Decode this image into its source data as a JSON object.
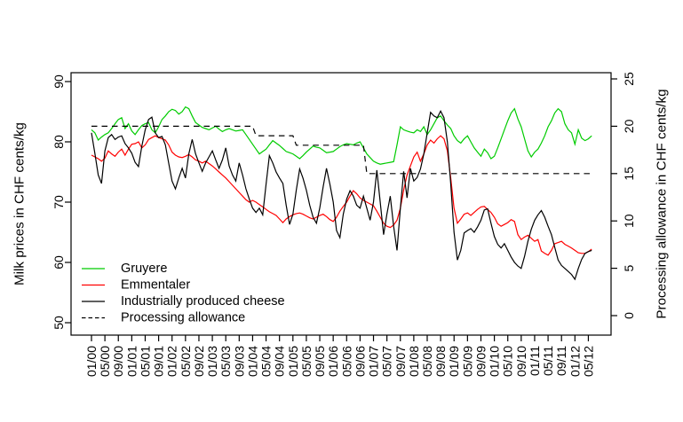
{
  "chart_data": {
    "type": "line",
    "title": "",
    "background_color": "#FFFFFF",
    "axis_color": "#000000",
    "x_axis": {
      "unit": "month",
      "first_month_index": 0,
      "last_month_index": 149,
      "tick_step_months": 4,
      "tick_labels": [
        "01/00",
        "05/00",
        "09/00",
        "01/01",
        "05/01",
        "09/01",
        "01/02",
        "05/02",
        "09/02",
        "01/03",
        "05/03",
        "09/03",
        "01/04",
        "05/04",
        "09/04",
        "01/05",
        "05/05",
        "09/05",
        "01/06",
        "05/06",
        "09/06",
        "01/07",
        "05/07",
        "09/07",
        "01/08",
        "05/08",
        "09/08",
        "01/09",
        "05/09",
        "09/09",
        "01/10",
        "05/10",
        "09/10",
        "01/11",
        "05/11",
        "09/11",
        "01/12",
        "05/12"
      ]
    },
    "y_axis_left": {
      "label": "Milk prices in CHF cents/kg",
      "tick_labels": [
        "50",
        "60",
        "70",
        "80",
        "90"
      ],
      "tick_values": [
        50,
        60,
        70,
        80,
        90
      ],
      "range": [
        48,
        92
      ]
    },
    "y_axis_right": {
      "label": "Processing allowance in CHF cents/kg",
      "tick_labels": [
        "0",
        "5",
        "10",
        "15",
        "20",
        "25"
      ],
      "tick_values": [
        0,
        5,
        10,
        15,
        20,
        25
      ],
      "range": [
        0,
        26
      ]
    },
    "legend": {
      "position": "inside-bottom-left",
      "border": "none"
    },
    "series": [
      {
        "name": "Gruyere",
        "color": "#00CC00",
        "line_style": "solid",
        "axis": "left",
        "values": [
          82.0,
          81.5,
          80.3,
          80.8,
          81.2,
          81.5,
          82.2,
          83.0,
          83.7,
          84.0,
          82.2,
          83.0,
          81.8,
          81.2,
          82.0,
          82.7,
          83.0,
          83.2,
          82.0,
          81.5,
          82.5,
          83.7,
          84.3,
          85.0,
          85.4,
          85.2,
          84.6,
          85.0,
          85.8,
          85.5,
          84.3,
          83.2,
          82.8,
          82.4,
          82.2,
          82.0,
          82.3,
          82.6,
          82.1,
          81.7,
          82.0,
          82.2,
          82.0,
          81.8,
          81.9,
          82.0,
          81.2,
          80.4,
          79.6,
          78.8,
          78.0,
          78.4,
          78.8,
          79.5,
          80.2,
          79.8,
          79.4,
          78.9,
          78.4,
          78.2,
          78.0,
          77.6,
          77.2,
          77.7,
          78.3,
          78.8,
          79.3,
          79.1,
          79.0,
          78.6,
          78.2,
          78.3,
          78.4,
          78.8,
          79.2,
          79.5,
          79.7,
          79.6,
          79.5,
          79.8,
          80.0,
          79.0,
          78.0,
          77.4,
          76.8,
          76.5,
          76.3,
          76.4,
          76.5,
          76.6,
          76.7,
          79.5,
          82.5,
          82.0,
          81.8,
          81.6,
          81.5,
          82.0,
          81.7,
          82.5,
          81.2,
          82.0,
          83.0,
          84.0,
          84.3,
          83.5,
          82.8,
          82.2,
          81.0,
          80.2,
          79.8,
          80.5,
          81.0,
          80.0,
          79.0,
          78.3,
          77.6,
          78.8,
          78.2,
          77.2,
          77.6,
          79.0,
          80.5,
          82.0,
          83.5,
          84.8,
          85.5,
          83.8,
          82.5,
          80.5,
          78.5,
          77.5,
          78.3,
          78.8,
          79.8,
          81.0,
          82.5,
          83.5,
          84.8,
          85.5,
          85.0,
          83.0,
          82.0,
          81.5,
          79.6,
          82.0,
          80.6,
          80.2,
          80.5,
          81.0
        ]
      },
      {
        "name": "Emmentaler",
        "color": "#FF0000",
        "line_style": "solid",
        "axis": "left",
        "values": [
          77.8,
          77.5,
          77.2,
          76.8,
          77.3,
          78.5,
          78.0,
          77.6,
          78.3,
          78.8,
          77.8,
          78.8,
          79.6,
          79.7,
          80.0,
          79.0,
          79.5,
          80.4,
          80.7,
          81.0,
          80.7,
          80.5,
          80.3,
          79.5,
          78.3,
          77.8,
          77.5,
          77.4,
          77.6,
          77.9,
          77.5,
          77.0,
          76.8,
          76.5,
          76.8,
          76.4,
          76.0,
          75.5,
          75.0,
          74.5,
          74.0,
          73.4,
          72.8,
          72.2,
          71.6,
          71.0,
          70.4,
          70.0,
          70.3,
          70.0,
          69.6,
          69.2,
          68.8,
          68.4,
          68.1,
          67.8,
          67.2,
          66.6,
          67.2,
          67.6,
          67.9,
          68.1,
          68.2,
          68.0,
          67.7,
          67.4,
          67.2,
          67.5,
          67.8,
          68.0,
          67.6,
          67.1,
          66.8,
          67.5,
          68.5,
          69.3,
          70.0,
          71.0,
          71.9,
          71.4,
          70.7,
          70.3,
          70.0,
          69.7,
          69.4,
          68.5,
          67.5,
          66.5,
          66.0,
          65.8,
          66.2,
          67.0,
          69.0,
          72.0,
          74.5,
          76.0,
          77.5,
          78.3,
          76.8,
          78.0,
          79.5,
          80.3,
          79.8,
          80.5,
          81.0,
          80.5,
          78.5,
          74.0,
          69.0,
          66.5,
          67.2,
          68.0,
          68.2,
          67.8,
          68.3,
          68.8,
          69.2,
          69.3,
          68.8,
          68.3,
          67.5,
          66.4,
          66.0,
          66.3,
          66.6,
          67.1,
          66.8,
          64.6,
          63.8,
          64.2,
          64.5,
          64.0,
          63.5,
          63.8,
          61.9,
          61.5,
          61.2,
          62.0,
          63.1,
          63.3,
          63.5,
          63.0,
          62.7,
          62.4,
          62.0,
          61.6,
          61.5,
          61.5,
          61.8,
          62.2
        ]
      },
      {
        "name": "Industrially produced cheese",
        "color": "#000000",
        "line_style": "solid",
        "axis": "left",
        "values": [
          81.5,
          78.1,
          74.5,
          73.1,
          78.5,
          80.7,
          81.2,
          80.4,
          80.8,
          81.0,
          79.7,
          79.0,
          78.1,
          76.6,
          75.9,
          79.3,
          82.0,
          83.7,
          84.1,
          81.5,
          80.7,
          80.9,
          79.5,
          76.5,
          73.5,
          72.2,
          74.0,
          75.6,
          74.0,
          78.0,
          80.4,
          78.0,
          76.5,
          75.1,
          76.5,
          77.5,
          78.5,
          77.0,
          75.6,
          77.0,
          79.0,
          76.0,
          74.5,
          73.5,
          76.5,
          74.5,
          72.2,
          70.5,
          69.0,
          68.3,
          69.0,
          67.9,
          73.0,
          77.7,
          76.5,
          75.0,
          74.0,
          73.1,
          69.5,
          66.3,
          68.0,
          72.0,
          75.5,
          74.0,
          72.0,
          69.5,
          67.5,
          66.5,
          69.0,
          72.5,
          75.6,
          73.0,
          70.0,
          65.3,
          64.1,
          68.0,
          70.5,
          71.9,
          71.0,
          69.5,
          69.0,
          71.0,
          69.0,
          67.0,
          70.0,
          75.3,
          70.0,
          64.6,
          68.0,
          71.0,
          66.0,
          62.0,
          69.0,
          75.1,
          70.7,
          75.6,
          73.5,
          74.1,
          75.5,
          78.0,
          81.5,
          84.9,
          84.3,
          84.0,
          85.1,
          84.0,
          80.0,
          73.0,
          65.0,
          60.4,
          62.0,
          64.9,
          65.3,
          65.6,
          65.0,
          65.9,
          67.0,
          68.7,
          68.9,
          66.5,
          64.3,
          63.0,
          62.4,
          63.1,
          62.0,
          60.9,
          60.0,
          59.4,
          59.0,
          61.0,
          63.5,
          65.5,
          67.0,
          67.9,
          68.6,
          67.5,
          66.0,
          64.6,
          62.5,
          60.4,
          59.5,
          59.0,
          58.5,
          58.0,
          57.2,
          59.0,
          60.5,
          61.5,
          61.8,
          62.0
        ]
      },
      {
        "name": "Processing allowance",
        "color": "#000000",
        "line_style": "dashed",
        "axis": "right",
        "values": [
          20,
          20,
          20,
          20,
          20,
          20,
          20,
          20,
          20,
          20,
          20,
          20,
          20,
          20,
          20,
          20,
          20,
          20,
          20,
          20,
          20,
          20,
          20,
          20,
          20,
          20,
          20,
          20,
          20,
          20,
          20,
          20,
          20,
          20,
          20,
          20,
          20,
          20,
          20,
          20,
          20,
          20,
          20,
          20,
          20,
          20,
          20,
          20,
          20,
          19,
          19,
          19,
          19,
          19,
          19,
          19,
          19,
          19,
          19,
          19,
          19,
          18,
          18,
          18,
          18,
          18,
          18,
          18,
          18,
          18,
          18,
          18,
          18,
          18,
          18,
          18,
          18,
          18,
          18,
          18,
          18,
          18,
          15,
          15,
          15,
          15,
          15,
          15,
          15,
          15,
          15,
          15,
          15,
          15,
          15,
          15,
          15,
          15,
          15,
          15,
          15,
          15,
          15,
          15,
          15,
          15,
          15,
          15,
          15,
          15,
          15,
          15,
          15,
          15,
          15,
          15,
          15,
          15,
          15,
          15,
          15,
          15,
          15,
          15,
          15,
          15,
          15,
          15,
          15,
          15,
          15,
          15,
          15,
          15,
          15,
          15,
          15,
          15,
          15,
          15,
          15,
          15,
          15,
          15,
          15,
          15,
          15,
          15,
          15,
          15
        ]
      }
    ]
  }
}
